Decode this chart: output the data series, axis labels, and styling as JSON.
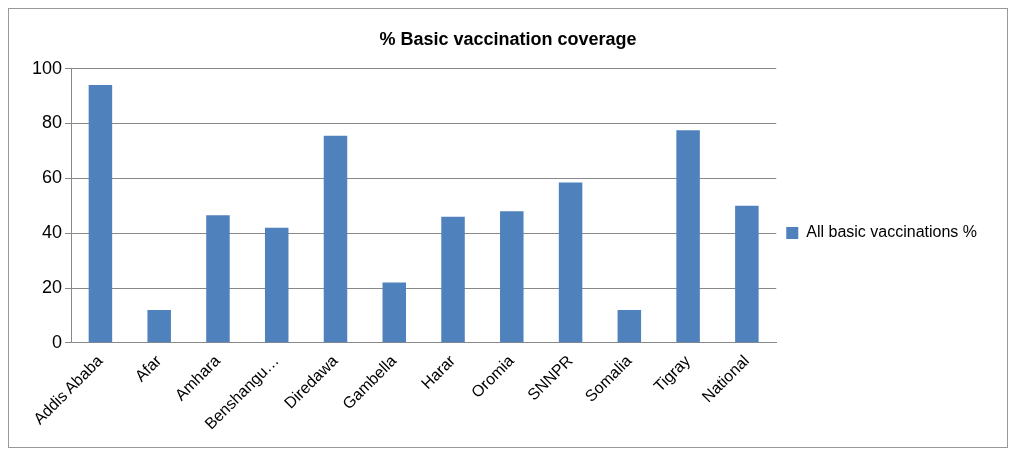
{
  "chart_data": {
    "type": "bar",
    "title": "% Basic vaccination coverage",
    "categories": [
      "Addis Ababa",
      "Afar",
      "Amhara",
      "Benshangu…",
      "Diredawa",
      "Gambella",
      "Harar",
      "Oromia",
      "SNNPR",
      "Somalia",
      "Tigray",
      "National"
    ],
    "series": [
      {
        "name": "All basic vaccinations %",
        "color": "#4f81bd",
        "values": [
          94,
          12,
          46.5,
          42,
          75.5,
          22,
          46,
          48,
          58.5,
          12,
          77.5,
          50
        ]
      }
    ],
    "ylim": [
      0,
      100
    ],
    "yticks": [
      0,
      20,
      40,
      60,
      80,
      100
    ],
    "grid": "y",
    "legend": "right"
  }
}
